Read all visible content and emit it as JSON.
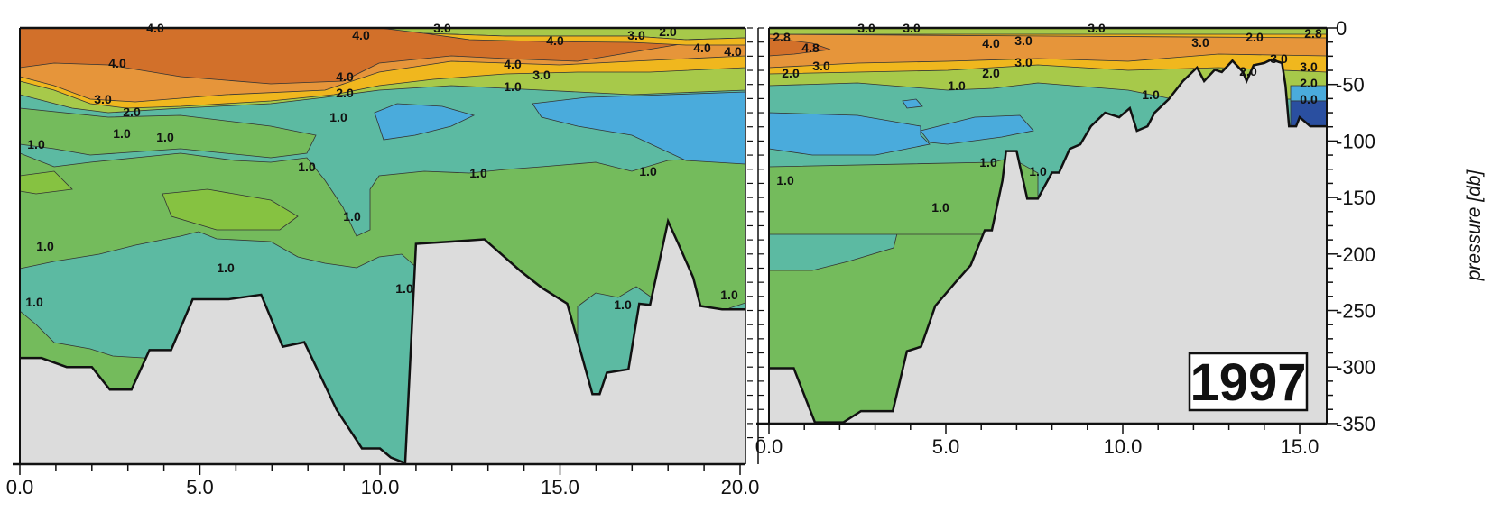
{
  "chart_data": [
    {
      "type": "heatmap",
      "subtype": "contour-section",
      "panel": "left",
      "xlim": [
        0,
        20
      ],
      "ylim": [
        -385,
        0
      ],
      "x_ticks": [
        "0.0",
        "5.0",
        "10.0",
        "15.0",
        "20.0"
      ],
      "x_tick_values": [
        0,
        5,
        10,
        15,
        20
      ],
      "contour_levels": [
        0.0,
        1.0,
        2.0,
        3.0,
        4.0
      ],
      "colors": {
        "dark_orange": "#d2702a",
        "orange": "#e6953a",
        "yellow": "#f0b71e",
        "light_green": "#a7c94a",
        "green": "#74bb5c",
        "bright_green": "#86c241",
        "teal": "#5cbaa2",
        "blue": "#4aabdc",
        "dark_blue": "#2a4fa0",
        "seabed": "#dcdcdc"
      },
      "bottom_profile": {
        "x": [
          0,
          0.6,
          1.3,
          2.0,
          2.5,
          3.1,
          3.6,
          4.2,
          4.8,
          5.8,
          6.7,
          7.3,
          7.9,
          8.8,
          9.5,
          10.0,
          10.3,
          10.7,
          11.0,
          12.0,
          12.9,
          13.9,
          14.5,
          15.2,
          15.5,
          15.9,
          16.1,
          16.3,
          16.9,
          17.2,
          17.5,
          18.0,
          18.3,
          18.7,
          18.9,
          19.5,
          20.2
        ],
        "pressure": [
          -292,
          -292,
          -300,
          -300,
          -320,
          -320,
          -285,
          -285,
          -240,
          -240,
          -236,
          -282,
          -278,
          -338,
          -372,
          -372,
          -380,
          -385,
          -191,
          -189,
          -187,
          -215,
          -230,
          -244,
          -278,
          -324,
          -324,
          -305,
          -302,
          -244,
          -245,
          -171,
          -192,
          -221,
          -246,
          -249,
          -249
        ]
      },
      "contour_labels": [
        "4.0",
        "4.0",
        "3.0",
        "4.0",
        "3.0",
        "2.0",
        "4.0",
        "4.0",
        "4.0",
        "4.0",
        "4.0",
        "3.0",
        "1.0",
        "2.0",
        "3.0",
        "2.0",
        "1.0",
        "1.0",
        "1.0",
        "1.0",
        "1.0",
        "1.0",
        "1.0",
        "1.0",
        "1.0",
        "1.0",
        "1.0",
        "1.0",
        "1.0",
        "1.0"
      ]
    },
    {
      "type": "heatmap",
      "subtype": "contour-section",
      "panel": "right",
      "xlim": [
        0,
        15.8
      ],
      "ylim": [
        -350,
        0
      ],
      "x_ticks": [
        "0.0",
        "5.0",
        "10.0",
        "15.0"
      ],
      "x_tick_values": [
        0,
        5,
        10,
        15
      ],
      "y_ticks": [
        "0",
        "-50",
        "-100",
        "-150",
        "-200",
        "-250",
        "-300",
        "-350"
      ],
      "y_tick_values": [
        0,
        -50,
        -100,
        -150,
        -200,
        -250,
        -300,
        -350
      ],
      "ylabel": "pressure [db]",
      "year_label": "1997",
      "bottom_profile": {
        "x": [
          0,
          0.7,
          1.3,
          2.1,
          2.6,
          3.5,
          3.9,
          4.3,
          4.7,
          5.3,
          5.7,
          6.1,
          6.3,
          6.6,
          6.7,
          7.0,
          7.3,
          7.6,
          8.0,
          8.2,
          8.5,
          8.8,
          9.1,
          9.5,
          9.9,
          10.2,
          10.4,
          10.7,
          10.9,
          11.3,
          11.7,
          12.1,
          12.3,
          12.6,
          12.8,
          13.1,
          13.4,
          13.5,
          13.7,
          14.0,
          14.2,
          14.5,
          14.6,
          14.7,
          14.9,
          15.0,
          15.3,
          15.8
        ],
        "pressure": [
          -301,
          -301,
          -349,
          -349,
          -339,
          -339,
          -286,
          -282,
          -246,
          -224,
          -210,
          -179,
          -179,
          -135,
          -109,
          -109,
          -151,
          -151,
          -128,
          -128,
          -107,
          -103,
          -87,
          -75,
          -79,
          -71,
          -91,
          -87,
          -75,
          -63,
          -47,
          -35,
          -47,
          -37,
          -39,
          -29,
          -39,
          -47,
          -33,
          -31,
          -28,
          -31,
          -51,
          -87,
          -87,
          -79,
          -87,
          -87
        ]
      },
      "contour_labels": [
        "3.0",
        "3.0",
        "3.0",
        "2.8",
        "4.8",
        "4.0",
        "3.0",
        "3.0",
        "2.0",
        "2.8",
        "2.0",
        "3.0",
        "2.0",
        "3.0",
        "1.0",
        "2.0",
        "3.0",
        "1.0",
        "1.0",
        "1.0",
        "1.0",
        "1.0",
        "3.0",
        "2.0",
        "0.0"
      ]
    }
  ]
}
